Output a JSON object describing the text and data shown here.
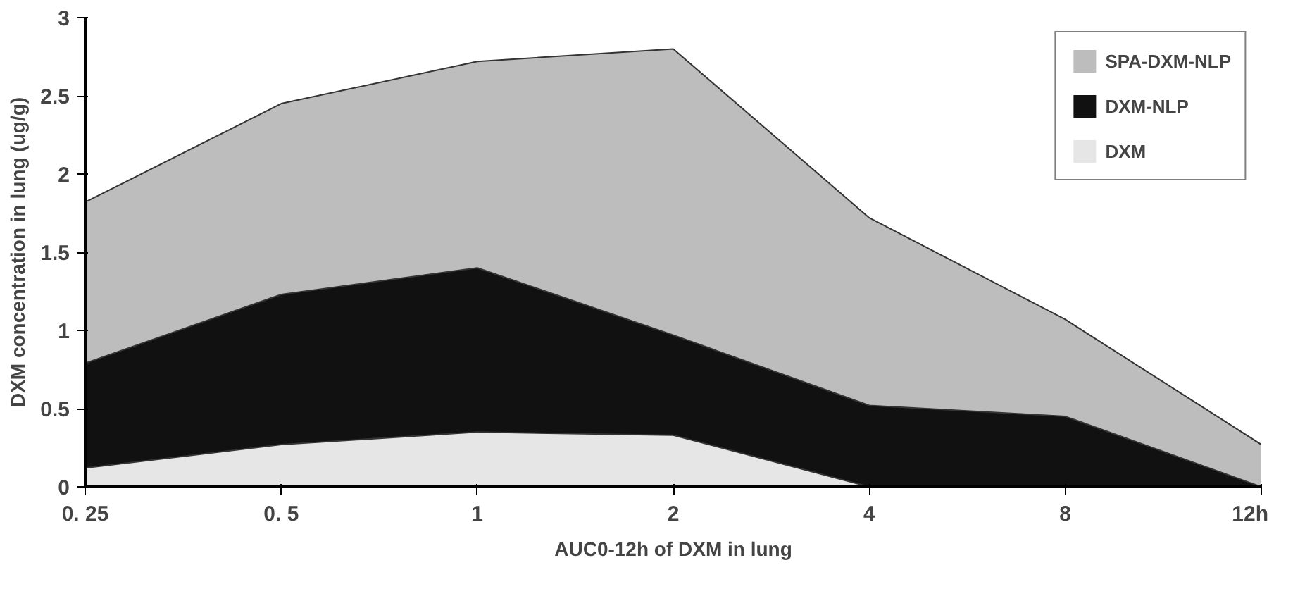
{
  "chart_data": {
    "type": "area",
    "xlabel": "AUC0-12h of DXM in lung",
    "ylabel": "DXM concentration in lung (ug/g)",
    "categories": [
      "0. 25",
      "0. 5",
      "1",
      "2",
      "4",
      "8",
      "12h"
    ],
    "series": [
      {
        "name": "SPA-DXM-NLP",
        "color": "#bdbdbd",
        "values": [
          1.82,
          2.45,
          2.72,
          2.8,
          1.72,
          1.07,
          0.27
        ]
      },
      {
        "name": "DXM-NLP",
        "color": "#111111",
        "values": [
          0.79,
          1.23,
          1.4,
          0.97,
          0.52,
          0.45,
          0
        ]
      },
      {
        "name": "DXM",
        "color": "#e6e6e6",
        "values": [
          0.12,
          0.27,
          0.35,
          0.33,
          0,
          0,
          0
        ]
      }
    ],
    "ylim": [
      0,
      3
    ],
    "yticks": [
      0,
      0.5,
      1,
      1.5,
      2,
      2.5,
      3
    ],
    "grid": false,
    "legend": "top right"
  }
}
